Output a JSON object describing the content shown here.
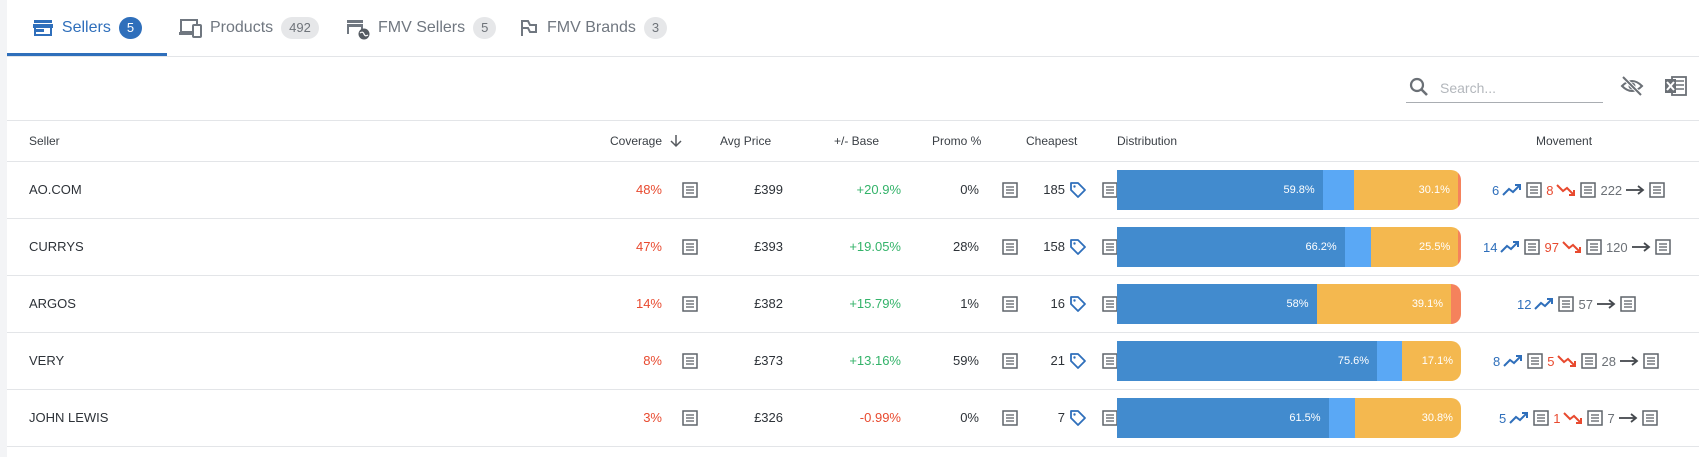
{
  "tabs": [
    {
      "label": "Sellers",
      "count": "5",
      "active": true,
      "icon": "storefront-icon"
    },
    {
      "label": "Products",
      "count": "492",
      "active": false,
      "icon": "devices-icon"
    },
    {
      "label": "FMV Sellers",
      "count": "5",
      "active": false,
      "icon": "store-globe-icon"
    },
    {
      "label": "FMV Brands",
      "count": "3",
      "active": false,
      "icon": "brand-flag-icon"
    }
  ],
  "search": {
    "placeholder": "Search...",
    "value": ""
  },
  "toolbar_icons": [
    "visibility-off-icon",
    "excel-export-icon"
  ],
  "columns": {
    "seller": "Seller",
    "coverage": "Coverage",
    "avg_price": "Avg Price",
    "base": "+/- Base",
    "promo": "Promo %",
    "cheapest": "Cheapest",
    "distribution": "Distribution",
    "movement": "Movement"
  },
  "sort": {
    "column": "coverage",
    "direction": "descending"
  },
  "colors": {
    "accent": "#2f6fbb",
    "negative": "#e84a2f",
    "positive": "#34b36a",
    "dist_blue": "#428bce",
    "dist_light_blue": "#5aa8f5",
    "dist_yellow": "#f4b84f",
    "dist_orange": "#f5825c"
  },
  "rows": [
    {
      "seller": "AO.COM",
      "coverage": "48%",
      "avg_price": "£399",
      "base": "+20.9%",
      "base_sign": "pos",
      "promo": "0%",
      "cheapest": "185",
      "distribution": {
        "segments": [
          59.8,
          9.2,
          30.1,
          0.9
        ],
        "labels": [
          "59.8%",
          "",
          "30.1%",
          ""
        ]
      },
      "movement": {
        "up": "6",
        "down": "8",
        "flat": "222"
      }
    },
    {
      "seller": "CURRYS",
      "coverage": "47%",
      "avg_price": "£393",
      "base": "+19.05%",
      "base_sign": "pos",
      "promo": "28%",
      "cheapest": "158",
      "distribution": {
        "segments": [
          66.2,
          7.5,
          25.5,
          0.8
        ],
        "labels": [
          "66.2%",
          "",
          "25.5%",
          ""
        ]
      },
      "movement": {
        "up": "14",
        "down": "97",
        "flat": "120"
      }
    },
    {
      "seller": "ARGOS",
      "coverage": "14%",
      "avg_price": "£382",
      "base": "+15.79%",
      "base_sign": "pos",
      "promo": "1%",
      "cheapest": "16",
      "distribution": {
        "segments": [
          58,
          0,
          39.1,
          2.9
        ],
        "labels": [
          "58%",
          "",
          "39.1%",
          ""
        ]
      },
      "movement": {
        "up": "12",
        "down": null,
        "flat": "57"
      }
    },
    {
      "seller": "VERY",
      "coverage": "8%",
      "avg_price": "£373",
      "base": "+13.16%",
      "base_sign": "pos",
      "promo": "59%",
      "cheapest": "21",
      "distribution": {
        "segments": [
          75.6,
          7.3,
          17.1,
          0
        ],
        "labels": [
          "75.6%",
          "",
          "17.1%",
          ""
        ]
      },
      "movement": {
        "up": "8",
        "down": "5",
        "flat": "28"
      }
    },
    {
      "seller": "JOHN LEWIS",
      "coverage": "3%",
      "avg_price": "£326",
      "base": "-0.99%",
      "base_sign": "neg",
      "promo": "0%",
      "cheapest": "7",
      "distribution": {
        "segments": [
          61.5,
          7.7,
          30.8,
          0
        ],
        "labels": [
          "61.5%",
          "",
          "30.8%",
          ""
        ]
      },
      "movement": {
        "up": "5",
        "down": "1",
        "flat": "7"
      }
    }
  ]
}
